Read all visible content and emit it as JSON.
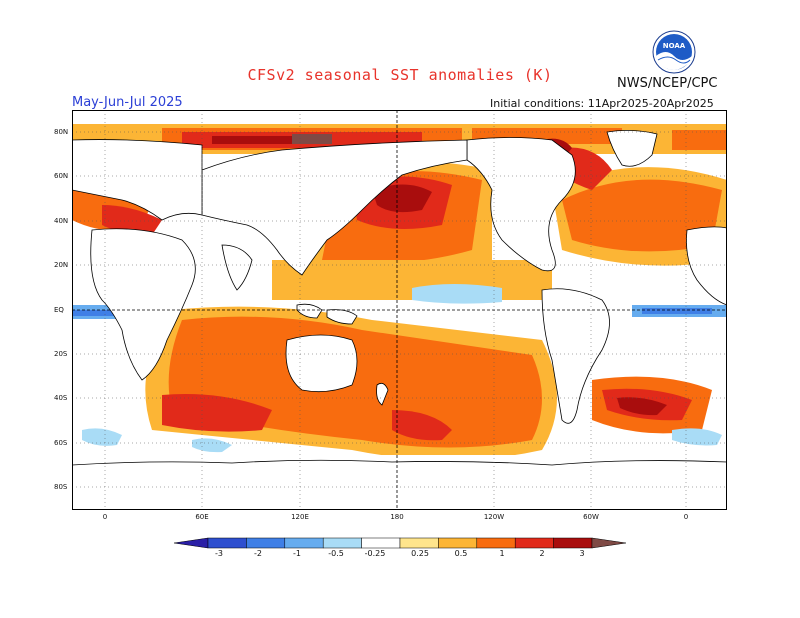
{
  "header": {
    "title": "CFSv2 seasonal SST anomalies (K)",
    "org": "NWS/NCEP/CPC",
    "logo_text": "NOAA",
    "season": "May-Jun-Jul 2025",
    "initial_conditions": "Initial conditions: 11Apr2025-20Apr2025"
  },
  "map": {
    "lat_labels": [
      "80N",
      "60N",
      "40N",
      "20N",
      "EQ",
      "20S",
      "40S",
      "60S",
      "80S"
    ],
    "lon_labels": [
      "0",
      "60E",
      "120E",
      "180",
      "120W",
      "60W",
      "0"
    ],
    "gridlines": "dotted",
    "reference_lines": [
      "equator",
      "dateline"
    ]
  },
  "colorbar": {
    "levels": [
      "-3",
      "-2",
      "-1",
      "-0.5",
      "-0.25",
      "0.25",
      "0.5",
      "1",
      "2",
      "3"
    ],
    "colors": [
      "#2a1fa6",
      "#2e4fcf",
      "#3f7fe6",
      "#66acef",
      "#a9dcf6",
      "#ffffff",
      "#ffe58c",
      "#fcb535",
      "#f86c0f",
      "#e12a1a",
      "#a90d0d",
      "#7f4a45"
    ]
  }
}
